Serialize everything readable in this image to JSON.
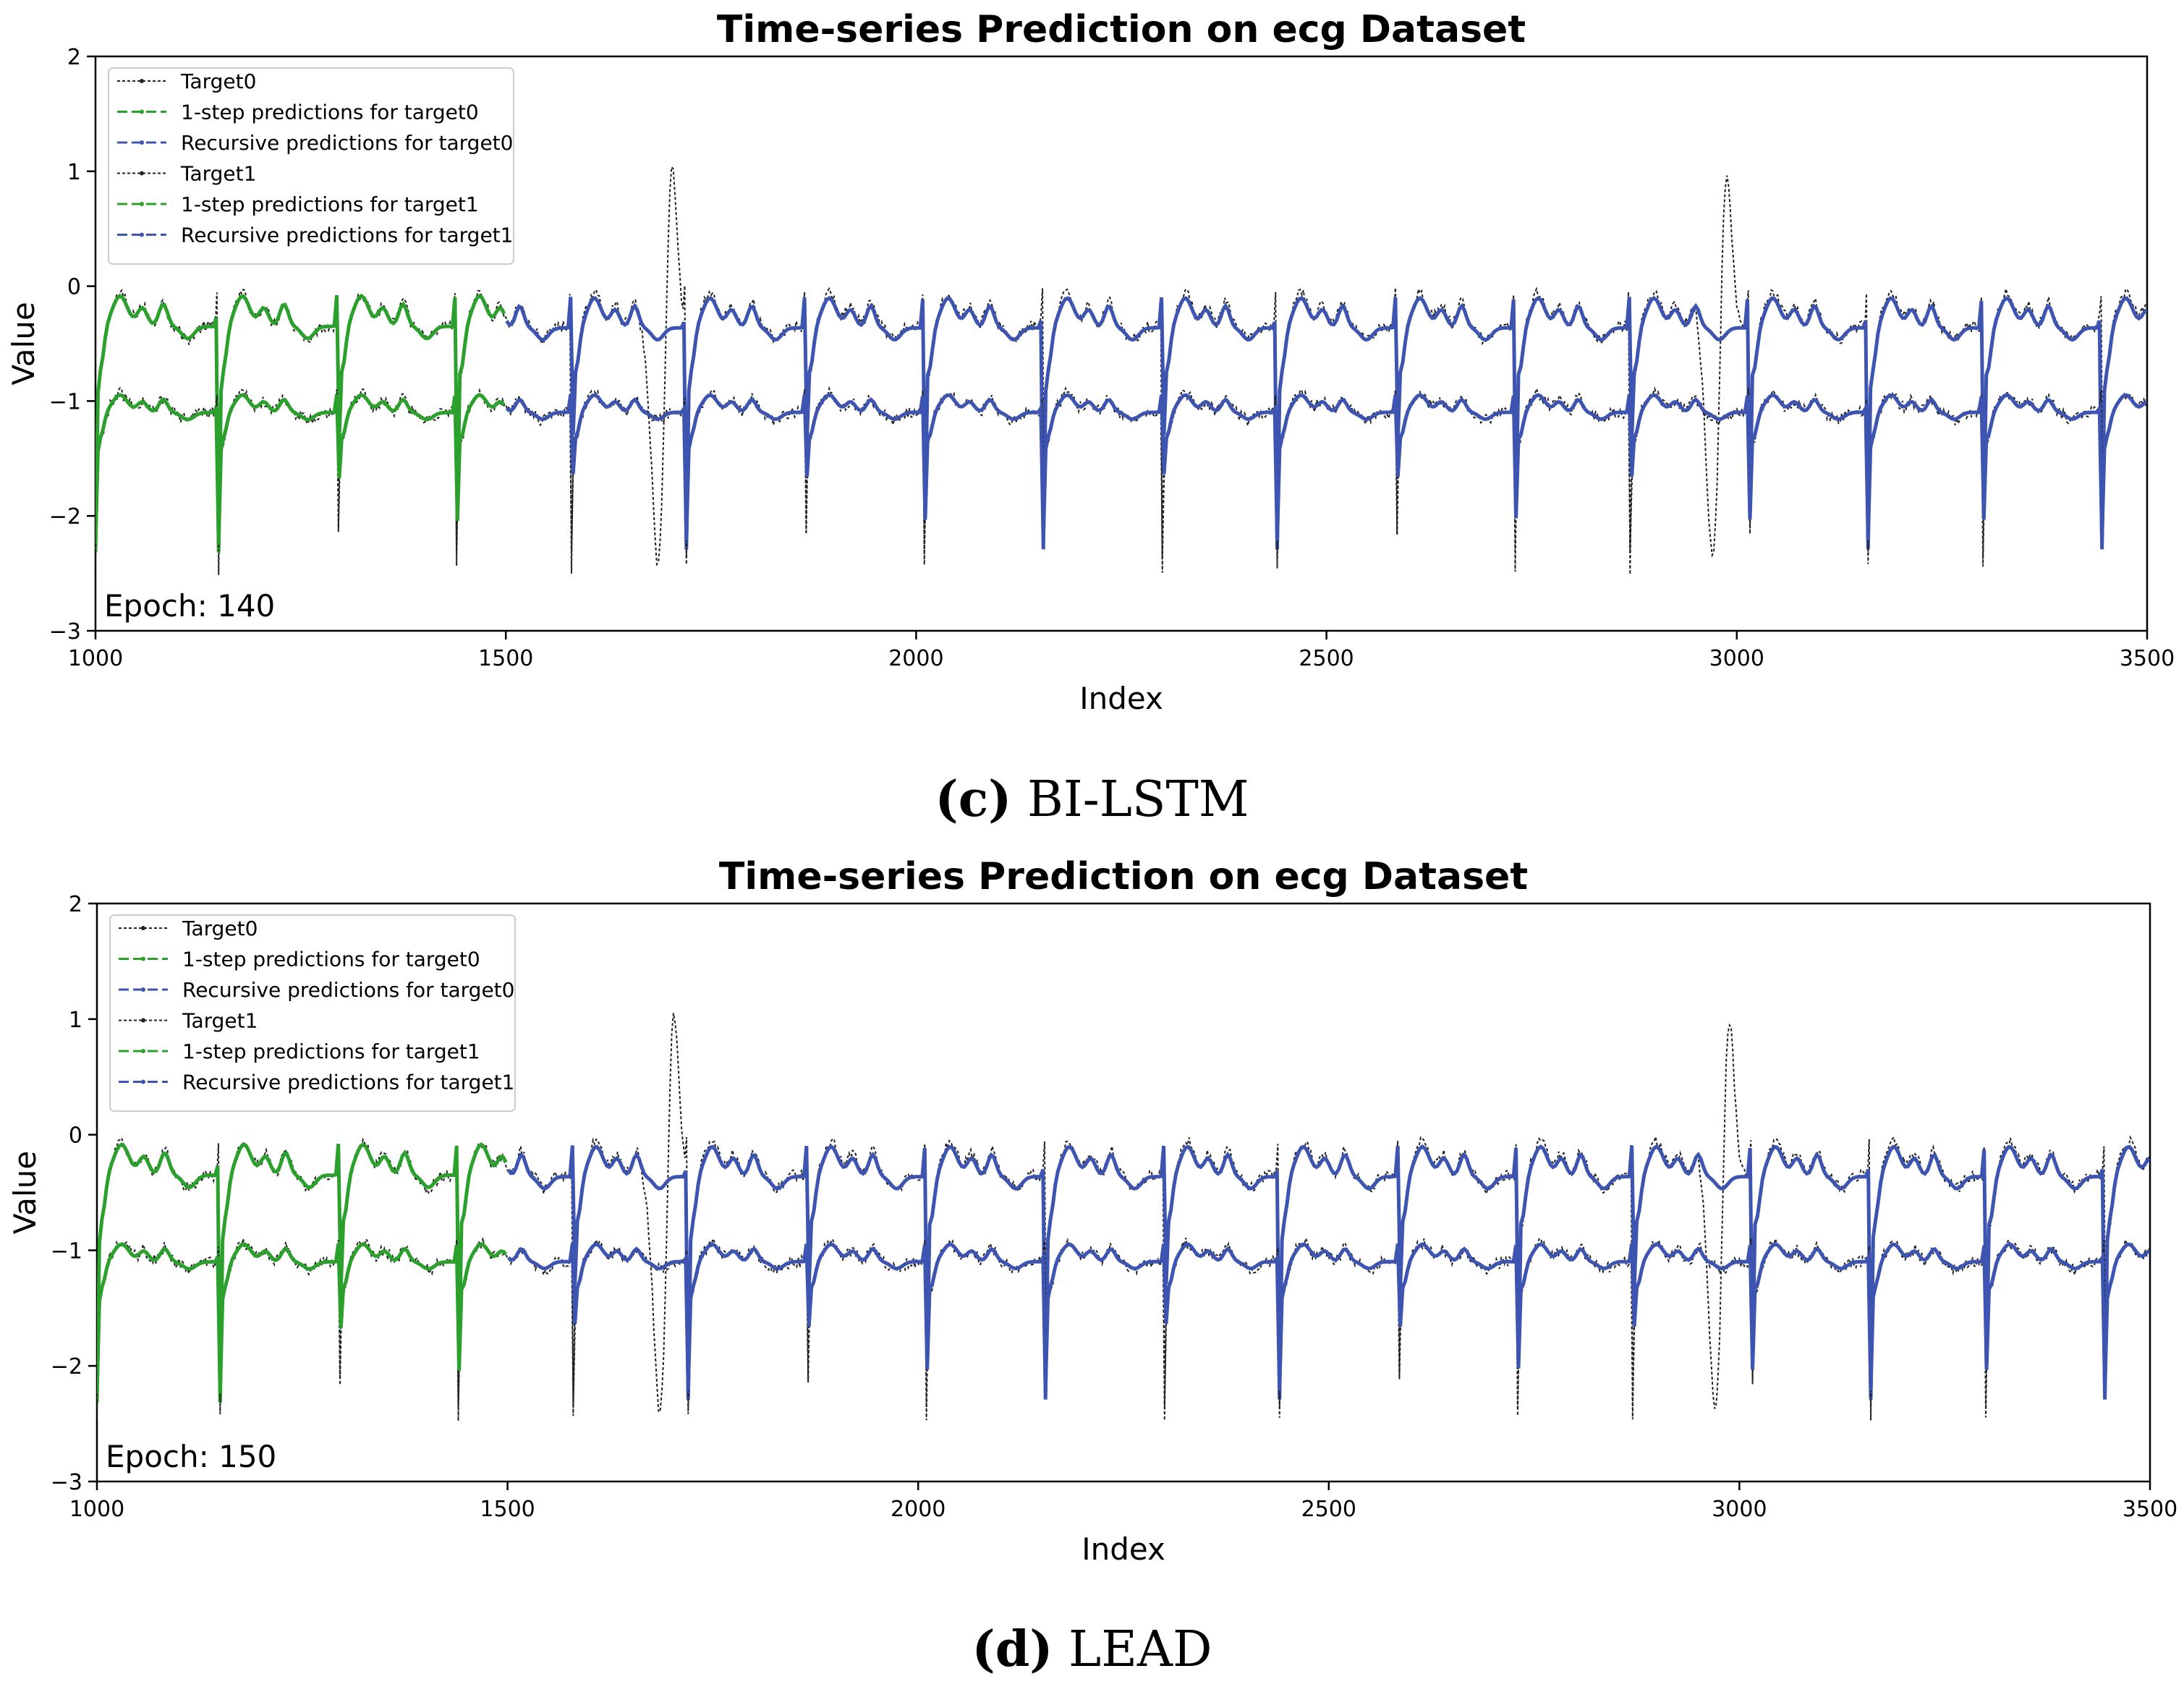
{
  "chart_data": [
    {
      "type": "line",
      "title": "Time-series Prediction on ecg Dataset",
      "xlabel": "Index",
      "ylabel": "Value",
      "xlim": [
        1000,
        3500
      ],
      "ylim": [
        -3,
        2
      ],
      "xticks": [
        1000,
        1500,
        2000,
        2500,
        3000,
        3500
      ],
      "yticks": [
        -3,
        -2,
        -1,
        0,
        1,
        2
      ],
      "annotation": "Epoch: 140",
      "legend_position": "top-left",
      "caption_label": "(c)",
      "caption_text": "BI-LSTM",
      "beat_starts": [
        1000,
        1150,
        1295,
        1440,
        1580,
        1720,
        1865,
        2010,
        2155,
        2300,
        2440,
        2585,
        2730,
        2870,
        3015,
        3160,
        3300,
        3445
      ],
      "onestep_until": 1500,
      "spikes": [
        1700,
        2985
      ],
      "series": [
        {
          "name": "Target0",
          "role": "target",
          "baseline": -0.35,
          "color": "#222222"
        },
        {
          "name": "1-step predictions for target0",
          "role": "onestep",
          "baseline": -0.35,
          "color": "#2ca02c"
        },
        {
          "name": "Recursive predictions for target0",
          "role": "recursive",
          "baseline": -0.35,
          "color": "#3d54b0"
        },
        {
          "name": "Target1",
          "role": "target",
          "baseline": -1.1,
          "color": "#222222"
        },
        {
          "name": "1-step predictions for target1",
          "role": "onestep",
          "baseline": -1.1,
          "color": "#2ca02c"
        },
        {
          "name": "Recursive predictions for target1",
          "role": "recursive",
          "baseline": -1.1,
          "color": "#3d54b0"
        }
      ]
    },
    {
      "type": "line",
      "title": "Time-series Prediction on ecg Dataset",
      "xlabel": "Index",
      "ylabel": "Value",
      "xlim": [
        1000,
        3500
      ],
      "ylim": [
        -3,
        2
      ],
      "xticks": [
        1000,
        1500,
        2000,
        2500,
        3000,
        3500
      ],
      "yticks": [
        -3,
        -2,
        -1,
        0,
        1,
        2
      ],
      "annotation": "Epoch: 150",
      "legend_position": "top-left",
      "caption_label": "(d)",
      "caption_text": "LEAD",
      "beat_starts": [
        1000,
        1150,
        1295,
        1440,
        1580,
        1720,
        1865,
        2010,
        2155,
        2300,
        2440,
        2585,
        2730,
        2870,
        3015,
        3160,
        3300,
        3445
      ],
      "onestep_until": 1500,
      "spikes": [
        1700,
        2985
      ],
      "series": [
        {
          "name": "Target0",
          "role": "target",
          "baseline": -0.35,
          "color": "#222222"
        },
        {
          "name": "1-step predictions for target0",
          "role": "onestep",
          "baseline": -0.35,
          "color": "#2ca02c"
        },
        {
          "name": "Recursive predictions for target0",
          "role": "recursive",
          "baseline": -0.35,
          "color": "#3d54b0"
        },
        {
          "name": "Target1",
          "role": "target",
          "baseline": -1.1,
          "color": "#222222"
        },
        {
          "name": "1-step predictions for target1",
          "role": "onestep",
          "baseline": -1.1,
          "color": "#2ca02c"
        },
        {
          "name": "Recursive predictions for target1",
          "role": "recursive",
          "baseline": -1.1,
          "color": "#3d54b0"
        }
      ]
    }
  ]
}
